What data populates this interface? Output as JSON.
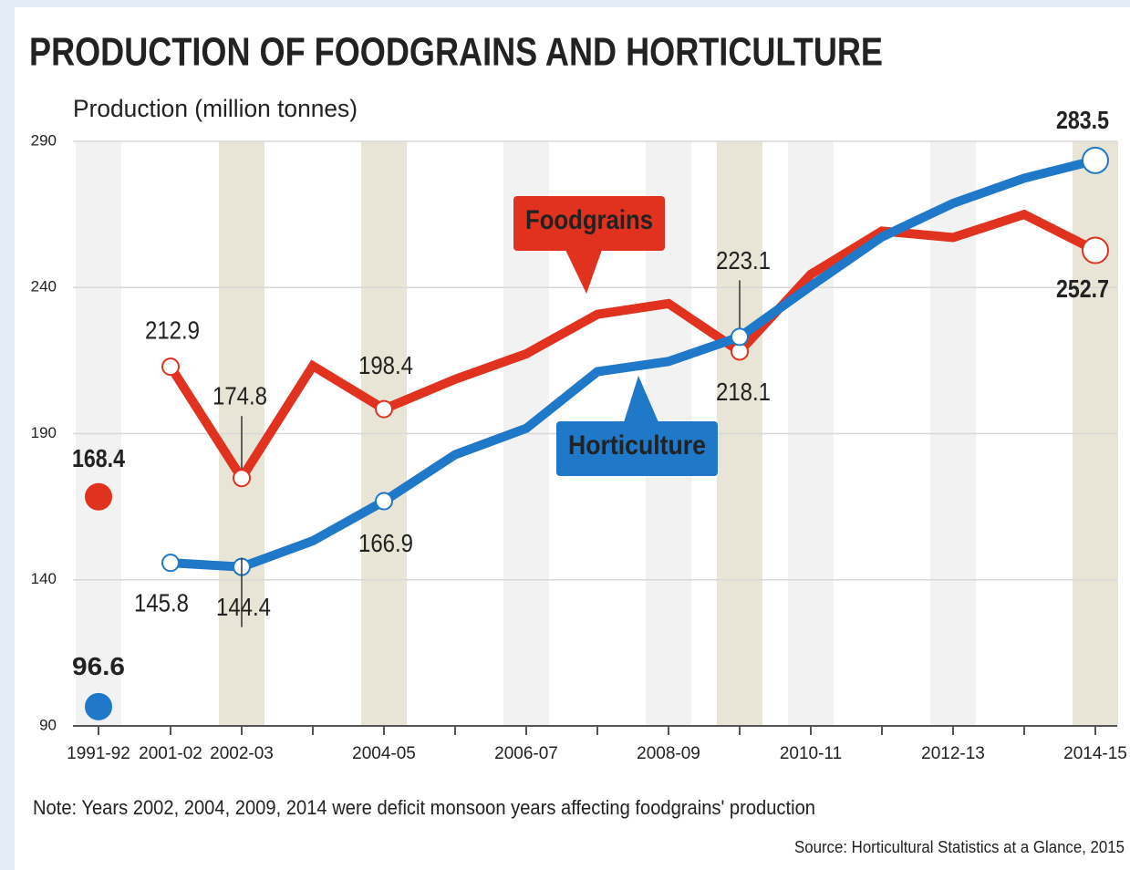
{
  "chart_data": {
    "type": "line",
    "title": "PRODUCTION OF FOODGRAINS AND HORTICULTURE",
    "y_label": "Production (million tonnes)",
    "note": "Note: Years 2002, 2004, 2009, 2014 were deficit monsoon years affecting foodgrains' production",
    "source": "Source: Horticultural Statistics at a Glance, 2015",
    "categories": [
      "1991-92",
      "2001-02",
      "2002-03",
      null,
      "2004-05",
      null,
      "2006-07",
      null,
      "2008-09",
      null,
      "2010-11",
      null,
      "2012-13",
      null,
      "2014-15"
    ],
    "series": [
      {
        "name": "Foodgrains",
        "color": "#e0321e",
        "values": [
          168.4,
          212.9,
          174.8,
          213.2,
          198.4,
          208.6,
          217.3,
          230.8,
          234.5,
          218.1,
          244.5,
          259.3,
          257.1,
          265.0,
          252.7
        ]
      },
      {
        "name": "Horticulture",
        "color": "#1f78c8",
        "values": [
          96.6,
          145.8,
          144.4,
          153.3,
          166.9,
          182.8,
          191.8,
          211.2,
          214.7,
          223.1,
          240.5,
          257.3,
          268.8,
          277.4,
          283.5
        ]
      }
    ],
    "ylim": [
      90,
      290
    ],
    "yticks": [
      90,
      140,
      190,
      240,
      290
    ],
    "grid": true
  }
}
